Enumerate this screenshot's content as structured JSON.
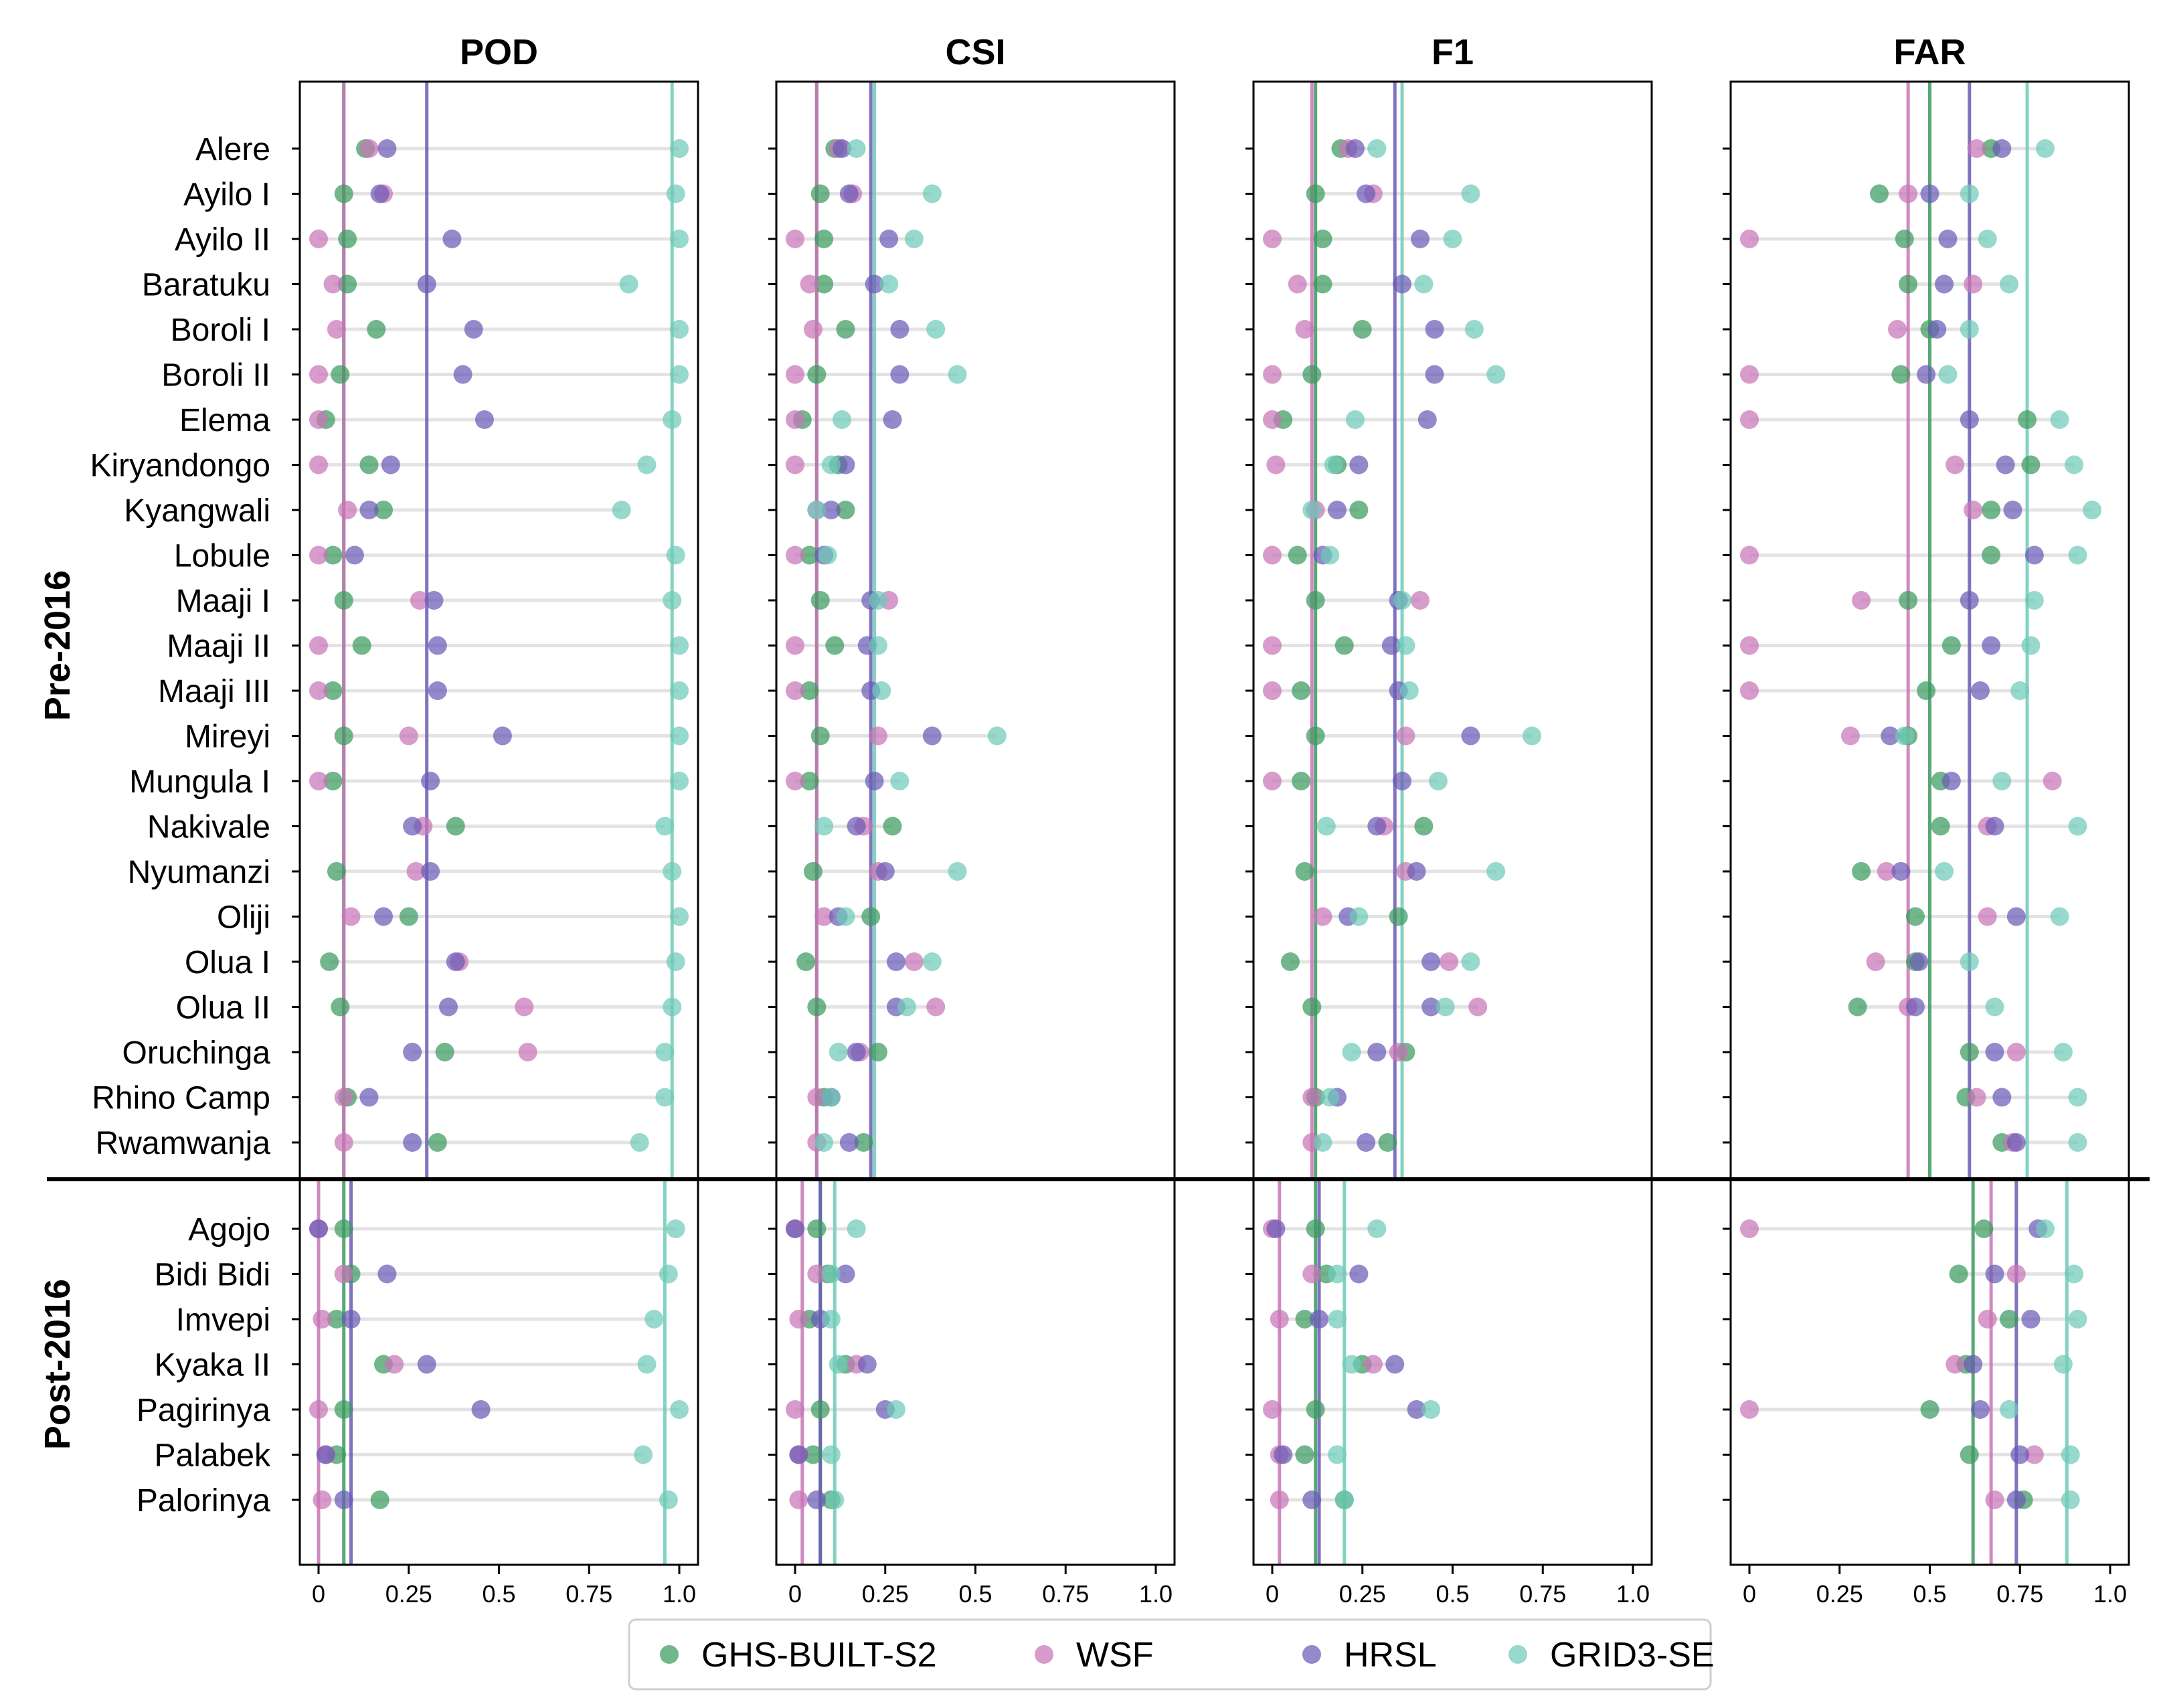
{
  "chart_data": {
    "type": "scatter",
    "subtype": "dot-plot small multiples",
    "panels": [
      "POD",
      "CSI",
      "F1",
      "FAR"
    ],
    "xlim": [
      0,
      1
    ],
    "x_ticks": [
      "0",
      "0.25",
      "0.5",
      "0.75",
      "1.0"
    ],
    "groups": [
      {
        "name": "Pre-2016",
        "categories": [
          "Alere",
          "Ayilo I",
          "Ayilo II",
          "Baratuku",
          "Boroli I",
          "Boroli II",
          "Elema",
          "Kiryandongo",
          "Kyangwali",
          "Lobule",
          "Maaji I",
          "Maaji II",
          "Maaji III",
          "Mireyi",
          "Mungula I",
          "Nakivale",
          "Nyumanzi",
          "Oliji",
          "Olua I",
          "Olua II",
          "Oruchinga",
          "Rhino Camp",
          "Rwamwanja"
        ]
      },
      {
        "name": "Post-2016",
        "categories": [
          "Agojo",
          "Bidi Bidi",
          "Imvepi",
          "Kyaka II",
          "Pagirinya",
          "Palabek",
          "Palorinya"
        ]
      }
    ],
    "series": [
      {
        "name": "GHS-BUILT-S2",
        "color": "#3c9a5f"
      },
      {
        "name": "WSF",
        "color": "#c776b7"
      },
      {
        "name": "HRSL",
        "color": "#6b5bb5"
      },
      {
        "name": "GRID3-SE",
        "color": "#6fcbb8"
      }
    ],
    "values": {
      "POD": {
        "GHS-BUILT-S2": [
          0.13,
          0.07,
          0.08,
          0.08,
          0.16,
          0.06,
          0.02,
          0.14,
          0.18,
          0.04,
          0.07,
          0.12,
          0.04,
          0.07,
          0.04,
          0.38,
          0.05,
          0.25,
          0.03,
          0.06,
          0.35,
          0.08,
          0.33,
          0.07,
          0.09,
          0.05,
          0.18,
          0.07,
          0.05,
          0.17
        ],
        "WSF": [
          0.14,
          0.18,
          0.0,
          0.04,
          0.05,
          0.0,
          0.0,
          0.0,
          0.08,
          0.0,
          0.28,
          0.0,
          0.0,
          0.25,
          0.0,
          0.29,
          0.27,
          0.09,
          0.39,
          0.57,
          0.58,
          0.07,
          0.07,
          0.0,
          0.07,
          0.01,
          0.21,
          0.0,
          0.02,
          0.01
        ],
        "HRSL": [
          0.19,
          0.17,
          0.37,
          0.3,
          0.43,
          0.4,
          0.46,
          0.2,
          0.14,
          0.1,
          0.32,
          0.33,
          0.33,
          0.51,
          0.31,
          0.26,
          0.31,
          0.18,
          0.38,
          0.36,
          0.26,
          0.14,
          0.26,
          0.0,
          0.19,
          0.09,
          0.3,
          0.45,
          0.02,
          0.07
        ],
        "GRID3-SE": [
          1.0,
          0.99,
          1.0,
          0.86,
          1.0,
          1.0,
          0.98,
          0.91,
          0.84,
          0.99,
          0.98,
          1.0,
          1.0,
          1.0,
          1.0,
          0.96,
          0.98,
          1.0,
          0.99,
          0.98,
          0.96,
          0.96,
          0.89,
          0.99,
          0.97,
          0.93,
          0.91,
          1.0,
          0.9,
          0.97
        ]
      },
      "CSI": {
        "GHS-BUILT-S2": [
          0.11,
          0.07,
          0.08,
          0.08,
          0.14,
          0.06,
          0.02,
          0.12,
          0.14,
          0.04,
          0.07,
          0.11,
          0.04,
          0.07,
          0.04,
          0.27,
          0.05,
          0.21,
          0.03,
          0.06,
          0.23,
          0.08,
          0.19,
          0.06,
          0.09,
          0.04,
          0.14,
          0.07,
          0.05,
          0.1
        ],
        "WSF": [
          0.12,
          0.16,
          0.0,
          0.04,
          0.05,
          0.0,
          0.0,
          0.0,
          0.06,
          0.0,
          0.26,
          0.0,
          0.0,
          0.23,
          0.0,
          0.19,
          0.23,
          0.08,
          0.33,
          0.39,
          0.18,
          0.06,
          0.06,
          0.0,
          0.06,
          0.01,
          0.17,
          0.0,
          0.01,
          0.01
        ],
        "HRSL": [
          0.13,
          0.15,
          0.26,
          0.22,
          0.29,
          0.29,
          0.27,
          0.14,
          0.1,
          0.08,
          0.21,
          0.2,
          0.21,
          0.38,
          0.22,
          0.17,
          0.25,
          0.12,
          0.28,
          0.28,
          0.17,
          0.1,
          0.15,
          0.0,
          0.14,
          0.07,
          0.2,
          0.25,
          0.01,
          0.06
        ],
        "GRID3-SE": [
          0.17,
          0.38,
          0.33,
          0.26,
          0.39,
          0.45,
          0.13,
          0.1,
          0.06,
          0.09,
          0.23,
          0.23,
          0.24,
          0.56,
          0.29,
          0.08,
          0.45,
          0.14,
          0.38,
          0.31,
          0.12,
          0.1,
          0.08,
          0.17,
          0.1,
          0.1,
          0.12,
          0.28,
          0.1,
          0.11
        ]
      },
      "F1": {
        "GHS-BUILT-S2": [
          0.19,
          0.12,
          0.14,
          0.14,
          0.25,
          0.11,
          0.03,
          0.18,
          0.24,
          0.07,
          0.12,
          0.2,
          0.08,
          0.12,
          0.08,
          0.42,
          0.09,
          0.35,
          0.05,
          0.11,
          0.37,
          0.12,
          0.32,
          0.12,
          0.15,
          0.09,
          0.25,
          0.12,
          0.09,
          0.2
        ],
        "WSF": [
          0.21,
          0.28,
          0.0,
          0.07,
          0.09,
          0.0,
          0.0,
          0.01,
          0.12,
          0.0,
          0.41,
          0.0,
          0.0,
          0.37,
          0.0,
          0.31,
          0.37,
          0.14,
          0.49,
          0.57,
          0.35,
          0.11,
          0.11,
          0.0,
          0.11,
          0.02,
          0.28,
          0.0,
          0.02,
          0.02
        ],
        "HRSL": [
          0.23,
          0.26,
          0.41,
          0.36,
          0.45,
          0.45,
          0.43,
          0.24,
          0.18,
          0.14,
          0.35,
          0.33,
          0.35,
          0.55,
          0.36,
          0.29,
          0.4,
          0.21,
          0.44,
          0.44,
          0.29,
          0.18,
          0.26,
          0.01,
          0.24,
          0.13,
          0.34,
          0.4,
          0.03,
          0.11
        ],
        "GRID3-SE": [
          0.29,
          0.55,
          0.5,
          0.42,
          0.56,
          0.62,
          0.23,
          0.17,
          0.11,
          0.16,
          0.36,
          0.37,
          0.38,
          0.72,
          0.46,
          0.15,
          0.62,
          0.24,
          0.55,
          0.48,
          0.22,
          0.16,
          0.14,
          0.29,
          0.18,
          0.18,
          0.22,
          0.44,
          0.18,
          0.2
        ]
      },
      "FAR": {
        "GHS-BUILT-S2": [
          0.67,
          0.36,
          0.43,
          0.44,
          0.5,
          0.42,
          0.77,
          0.78,
          0.67,
          0.67,
          0.44,
          0.56,
          0.49,
          0.44,
          0.53,
          0.53,
          0.31,
          0.46,
          0.46,
          0.3,
          0.61,
          0.6,
          0.7,
          0.65,
          0.58,
          0.72,
          0.6,
          0.5,
          0.61,
          0.76
        ],
        "WSF": [
          0.63,
          0.44,
          0.0,
          0.62,
          0.41,
          0.0,
          0.0,
          0.57,
          0.62,
          0.0,
          0.31,
          0.0,
          0.0,
          0.28,
          0.84,
          0.66,
          0.38,
          0.66,
          0.35,
          0.44,
          0.74,
          0.63,
          0.73,
          0.0,
          0.74,
          0.66,
          0.57,
          0.0,
          0.79,
          0.68
        ],
        "HRSL": [
          0.7,
          0.5,
          0.55,
          0.54,
          0.52,
          0.49,
          0.61,
          0.71,
          0.73,
          0.79,
          0.61,
          0.67,
          0.64,
          0.39,
          0.56,
          0.68,
          0.42,
          0.74,
          0.47,
          0.46,
          0.68,
          0.7,
          0.74,
          0.8,
          0.68,
          0.78,
          0.62,
          0.64,
          0.75,
          0.74
        ],
        "GRID3-SE": [
          0.82,
          0.61,
          0.66,
          0.72,
          0.61,
          0.55,
          0.86,
          0.9,
          0.95,
          0.91,
          0.79,
          0.78,
          0.75,
          0.43,
          0.7,
          0.91,
          0.54,
          0.86,
          0.61,
          0.68,
          0.87,
          0.91,
          0.91,
          0.82,
          0.9,
          0.91,
          0.87,
          0.72,
          0.89,
          0.89
        ]
      }
    },
    "means": {
      "POD": {
        "Pre-2016": {
          "GHS-BUILT-S2": 0.07,
          "WSF": 0.07,
          "HRSL": 0.3,
          "GRID3-SE": 0.98
        },
        "Post-2016": {
          "GHS-BUILT-S2": 0.07,
          "WSF": 0.0,
          "HRSL": 0.09,
          "GRID3-SE": 0.96
        }
      },
      "CSI": {
        "Pre-2016": {
          "GHS-BUILT-S2": 0.06,
          "WSF": 0.06,
          "HRSL": 0.21,
          "GRID3-SE": 0.22
        },
        "Post-2016": {
          "GHS-BUILT-S2": 0.07,
          "WSF": 0.02,
          "HRSL": 0.07,
          "GRID3-SE": 0.11
        }
      },
      "F1": {
        "Pre-2016": {
          "GHS-BUILT-S2": 0.12,
          "WSF": 0.11,
          "HRSL": 0.34,
          "GRID3-SE": 0.36
        },
        "Post-2016": {
          "GHS-BUILT-S2": 0.12,
          "WSF": 0.02,
          "HRSL": 0.13,
          "GRID3-SE": 0.2
        }
      },
      "FAR": {
        "Pre-2016": {
          "GHS-BUILT-S2": 0.5,
          "WSF": 0.44,
          "HRSL": 0.61,
          "GRID3-SE": 0.77
        },
        "Post-2016": {
          "GHS-BUILT-S2": 0.62,
          "WSF": 0.67,
          "HRSL": 0.74,
          "GRID3-SE": 0.88
        }
      }
    }
  }
}
